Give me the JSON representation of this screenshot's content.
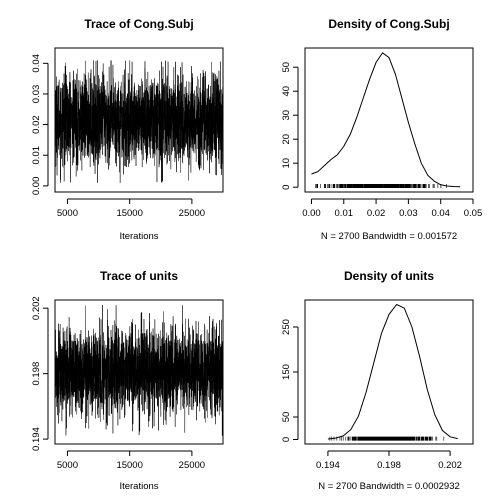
{
  "chart_data": [
    {
      "type": "line",
      "title": "Trace of Cong.Subj",
      "xlabel": "Iterations",
      "ylabel": "",
      "xlim": [
        3000,
        30000
      ],
      "ylim": [
        -0.002,
        0.045
      ],
      "x_ticks": [
        5000,
        15000,
        25000
      ],
      "x_tick_labels": [
        "5000",
        "15000",
        "25000"
      ],
      "y_ticks": [
        0.0,
        0.01,
        0.02,
        0.03,
        0.04
      ],
      "y_tick_labels": [
        "0.00",
        "0.01",
        "0.02",
        "0.03",
        "0.04"
      ],
      "series": [
        {
          "x_start": 3010,
          "x_end": 30000,
          "n": 2700,
          "mean": 0.0215,
          "sd": 0.0072,
          "min": 0.001,
          "max": 0.041,
          "color": "#000000"
        }
      ]
    },
    {
      "type": "line",
      "title": "Density of Cong.Subj",
      "xlabel": "N = 2700   Bandwidth = 0.001572",
      "ylabel": "",
      "xlim": [
        -0.002,
        0.05
      ],
      "ylim": [
        -2,
        58
      ],
      "x_ticks": [
        0.0,
        0.01,
        0.02,
        0.03,
        0.04,
        0.05
      ],
      "x_tick_labels": [
        "0.00",
        "0.01",
        "0.02",
        "0.03",
        "0.04",
        "0.05"
      ],
      "y_ticks": [
        0,
        10,
        20,
        30,
        40,
        50
      ],
      "y_tick_labels": [
        "0",
        "10",
        "20",
        "30",
        "40",
        "50"
      ],
      "series": [
        {
          "x": [
            0.0,
            0.002,
            0.004,
            0.006,
            0.008,
            0.01,
            0.012,
            0.014,
            0.016,
            0.018,
            0.02,
            0.022,
            0.024,
            0.026,
            0.028,
            0.03,
            0.032,
            0.034,
            0.036,
            0.038,
            0.04,
            0.042,
            0.044,
            0.046
          ],
          "y": [
            5.5,
            6.5,
            9.0,
            11.5,
            13.5,
            17.0,
            22.0,
            29.0,
            37.0,
            45.0,
            52.0,
            56.0,
            54.0,
            47.0,
            37.0,
            27.0,
            18.0,
            10.0,
            5.0,
            2.5,
            1.0,
            0.5,
            0.3,
            0.2
          ],
          "color": "#000000"
        }
      ],
      "rug": {
        "min": 0.0,
        "max": 0.042,
        "y": 0.5
      }
    },
    {
      "type": "line",
      "title": "Trace of units",
      "xlabel": "Iterations",
      "ylabel": "",
      "xlim": [
        3000,
        30000
      ],
      "ylim": [
        0.1937,
        0.2025
      ],
      "x_ticks": [
        5000,
        15000,
        25000
      ],
      "x_tick_labels": [
        "5000",
        "15000",
        "25000"
      ],
      "y_ticks": [
        0.194,
        0.198,
        0.202
      ],
      "y_tick_labels": [
        "0.194",
        "0.198",
        "0.202"
      ],
      "series": [
        {
          "x_start": 3010,
          "x_end": 30000,
          "n": 2700,
          "mean": 0.19815,
          "sd": 0.0013,
          "min": 0.1942,
          "max": 0.2022,
          "color": "#000000"
        }
      ]
    },
    {
      "type": "line",
      "title": "Density of units",
      "xlabel": "N = 2700   Bandwidth = 0.0002932",
      "ylabel": "",
      "xlim": [
        0.1925,
        0.2035
      ],
      "ylim": [
        -10,
        310
      ],
      "x_ticks": [
        0.194,
        0.198,
        0.202
      ],
      "x_tick_labels": [
        "0.194",
        "0.198",
        "0.202"
      ],
      "y_ticks": [
        0,
        50,
        150,
        250
      ],
      "y_tick_labels": [
        "0",
        "50",
        "150",
        "250"
      ],
      "series": [
        {
          "x": [
            0.194,
            0.1945,
            0.195,
            0.1955,
            0.196,
            0.1965,
            0.197,
            0.1975,
            0.198,
            0.1985,
            0.199,
            0.1995,
            0.2,
            0.2005,
            0.201,
            0.2015,
            0.202,
            0.2025
          ],
          "y": [
            1,
            3,
            8,
            22,
            52,
            105,
            170,
            235,
            278,
            300,
            292,
            250,
            185,
            112,
            55,
            20,
            6,
            2
          ],
          "color": "#000000"
        }
      ],
      "rug": {
        "min": 0.1941,
        "max": 0.2021,
        "y": 2
      }
    }
  ]
}
